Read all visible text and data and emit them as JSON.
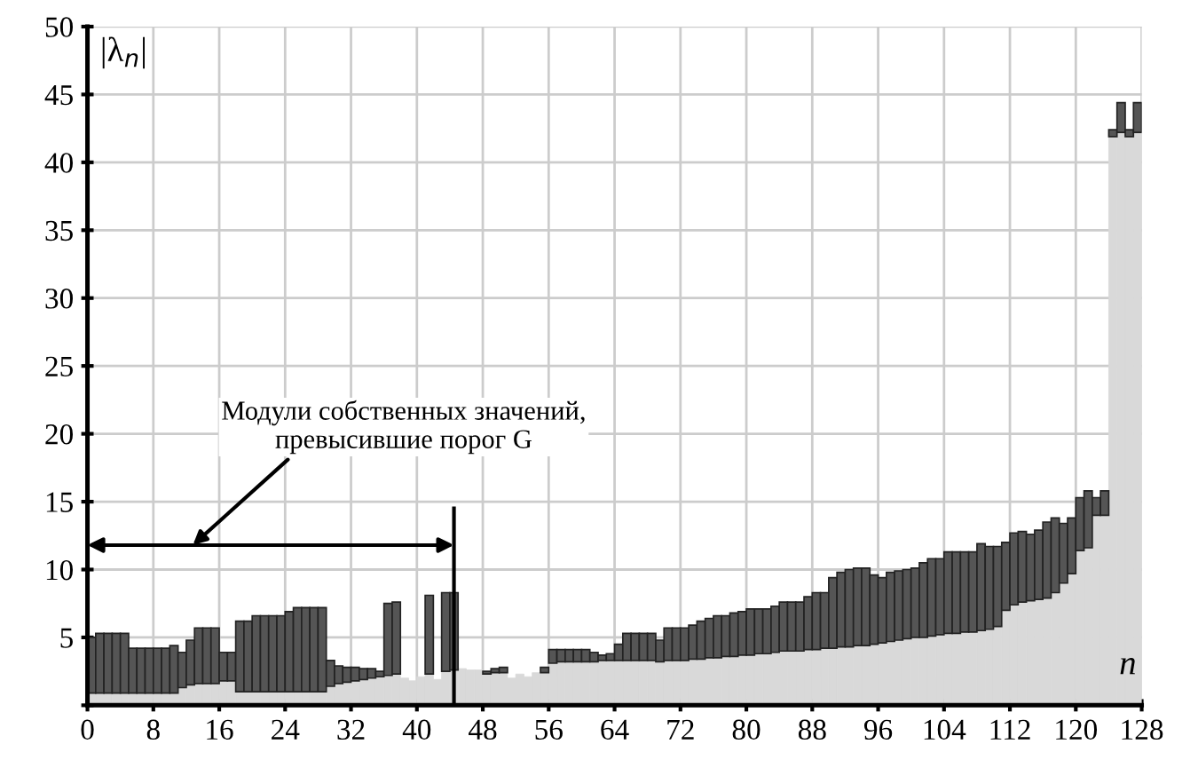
{
  "chart_data": {
    "type": "bar",
    "stacked": true,
    "xlabel": "n",
    "ylabel": "|λ$_{n}$|",
    "x": [
      0,
      1,
      2,
      3,
      4,
      5,
      6,
      7,
      8,
      9,
      10,
      11,
      12,
      13,
      14,
      15,
      16,
      17,
      18,
      19,
      20,
      21,
      22,
      23,
      24,
      25,
      26,
      27,
      28,
      29,
      30,
      31,
      32,
      33,
      34,
      35,
      36,
      37,
      38,
      39,
      40,
      41,
      42,
      43,
      44,
      45,
      46,
      47,
      48,
      49,
      50,
      51,
      52,
      53,
      54,
      55,
      56,
      57,
      58,
      59,
      60,
      61,
      62,
      63,
      64,
      65,
      66,
      67,
      68,
      69,
      70,
      71,
      72,
      73,
      74,
      75,
      76,
      77,
      78,
      79,
      80,
      81,
      82,
      83,
      84,
      85,
      86,
      87,
      88,
      89,
      90,
      91,
      92,
      93,
      94,
      95,
      96,
      97,
      98,
      99,
      100,
      101,
      102,
      103,
      104,
      105,
      106,
      107,
      108,
      109,
      110,
      111,
      112,
      113,
      114,
      115,
      116,
      117,
      118,
      119,
      120,
      121,
      122,
      123,
      124,
      125,
      126,
      127
    ],
    "series": [
      {
        "color": "#d9d9d9",
        "values": [
          0.9,
          0.9,
          0.9,
          0.9,
          0.9,
          0.9,
          0.9,
          0.9,
          0.9,
          0.9,
          0.9,
          1.3,
          1.5,
          1.6,
          1.6,
          1.6,
          1.8,
          1.8,
          1.0,
          1.0,
          1.0,
          1.0,
          1.0,
          1.0,
          1.0,
          1.0,
          1.0,
          1.0,
          1.0,
          1.4,
          1.6,
          1.7,
          1.8,
          1.9,
          2.0,
          2.1,
          2.2,
          2.3,
          2.0,
          1.8,
          2.1,
          2.3,
          1.9,
          2.5,
          2.6,
          2.7,
          2.6,
          2.6,
          2.3,
          2.4,
          2.4,
          2.0,
          2.3,
          2.1,
          2.4,
          2.4,
          3.1,
          3.2,
          3.2,
          3.2,
          3.2,
          3.2,
          3.3,
          3.3,
          3.3,
          3.3,
          3.3,
          3.3,
          3.3,
          3.2,
          3.3,
          3.3,
          3.3,
          3.4,
          3.4,
          3.5,
          3.5,
          3.6,
          3.6,
          3.7,
          3.7,
          3.8,
          3.8,
          3.9,
          4.0,
          4.0,
          4.0,
          4.1,
          4.1,
          4.2,
          4.2,
          4.3,
          4.3,
          4.4,
          4.4,
          4.5,
          4.6,
          4.7,
          4.8,
          4.9,
          5.0,
          5.0,
          5.1,
          5.2,
          5.3,
          5.3,
          5.4,
          5.4,
          5.5,
          5.6,
          5.8,
          7.0,
          7.4,
          7.6,
          7.7,
          7.8,
          7.9,
          8.3,
          9.0,
          9.7,
          11.4,
          11.6,
          14.0,
          14.0,
          41.9,
          42.2,
          41.9,
          42.2
        ]
      },
      {
        "color": "#555555",
        "values": [
          4.1,
          4.4,
          4.4,
          4.4,
          4.4,
          3.3,
          3.3,
          3.3,
          3.3,
          3.3,
          3.5,
          2.6,
          3.3,
          4.1,
          4.1,
          4.1,
          2.1,
          2.1,
          5.2,
          5.2,
          5.6,
          5.6,
          5.6,
          5.6,
          5.9,
          6.2,
          6.2,
          6.2,
          6.2,
          1.9,
          1.3,
          1.1,
          1.0,
          0.8,
          0.7,
          0.4,
          5.3,
          5.3,
          null,
          null,
          null,
          5.8,
          null,
          5.8,
          5.7,
          null,
          null,
          null,
          0.2,
          0.3,
          0.4,
          null,
          null,
          null,
          null,
          0.4,
          1.0,
          0.9,
          0.9,
          0.9,
          0.9,
          0.7,
          0.4,
          0.5,
          1.2,
          2.0,
          2.0,
          2.0,
          2.0,
          1.6,
          2.4,
          2.4,
          2.4,
          2.5,
          2.8,
          2.9,
          3.1,
          3.0,
          3.2,
          3.2,
          3.4,
          3.3,
          3.3,
          3.4,
          3.6,
          3.6,
          3.6,
          3.9,
          4.2,
          4.1,
          5.2,
          5.5,
          5.7,
          5.7,
          5.7,
          5.1,
          4.8,
          5.1,
          5.1,
          5.1,
          5.1,
          5.5,
          5.7,
          5.6,
          6.0,
          6.0,
          5.9,
          5.9,
          6.4,
          6.1,
          5.9,
          5.0,
          5.3,
          5.2,
          4.9,
          5.1,
          5.6,
          5.5,
          4.4,
          4.1,
          3.9,
          4.2,
          1.3,
          1.8,
          0.5,
          2.2,
          0.5,
          2.2
        ]
      }
    ],
    "xlim": [
      0,
      128
    ],
    "xticks": [
      0,
      8,
      16,
      24,
      32,
      40,
      48,
      56,
      64,
      72,
      80,
      88,
      96,
      104,
      112,
      120,
      128
    ],
    "ylim": [
      0,
      50
    ],
    "yticks": [
      {
        "value": 0,
        "label": null
      },
      5,
      10,
      15,
      20,
      25,
      30,
      35,
      40,
      45,
      50
    ],
    "grid": true,
    "ref_lines": [
      {
        "axis": "x",
        "value": 44.5,
        "color": "#000000"
      }
    ],
    "annotations": [
      "Модули собственных значений,\nпревысившие порог G"
    ]
  }
}
